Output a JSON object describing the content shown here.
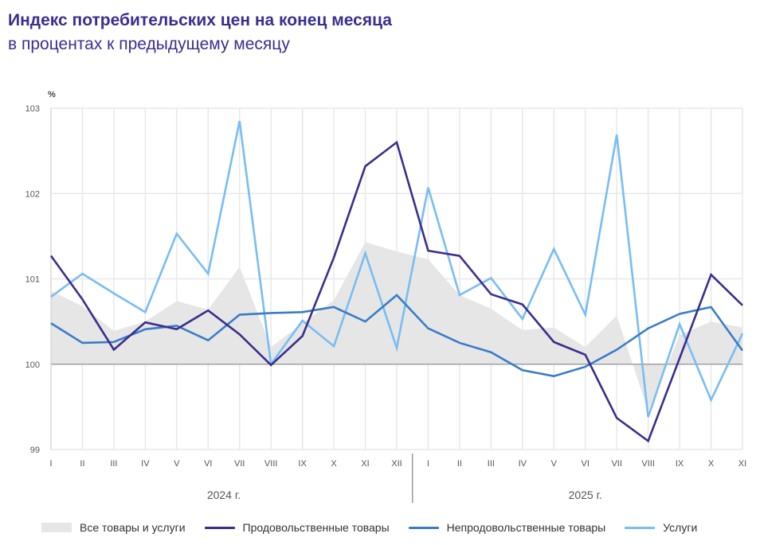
{
  "header": {
    "title": "Индекс потребительских цен на конец месяца",
    "subtitle": "в процентах к предыдущему месяцу"
  },
  "chart_data": {
    "type": "line",
    "title": "Индекс потребительских цен на конец месяца",
    "subtitle": "в процентах к предыдущему месяцу",
    "ylabel": "%",
    "ylim": [
      99,
      103
    ],
    "yticks": [
      "99",
      "100",
      "101",
      "102",
      "103"
    ],
    "grid": true,
    "categories": [
      "I",
      "II",
      "III",
      "IV",
      "V",
      "VI",
      "VII",
      "VIII",
      "IX",
      "X",
      "XI",
      "XII",
      "I",
      "II",
      "III",
      "IV",
      "V",
      "VI",
      "VII",
      "VIII",
      "IX",
      "X",
      "XI"
    ],
    "year_groups": [
      {
        "label": "2024 г.",
        "start": 0,
        "end": 11
      },
      {
        "label": "2025 г.",
        "start": 12,
        "end": 22
      }
    ],
    "series": [
      {
        "name": "Все товары и услуги",
        "kind": "area",
        "color": "#e6e6e6",
        "values": [
          100.86,
          100.68,
          100.39,
          100.5,
          100.74,
          100.64,
          101.14,
          100.2,
          100.48,
          100.75,
          101.43,
          101.32,
          101.23,
          100.81,
          100.65,
          100.4,
          100.43,
          100.2,
          100.57,
          99.45,
          100.34,
          100.5,
          100.43
        ]
      },
      {
        "name": "Продовольственные товары",
        "kind": "line",
        "color": "#3c2e8c",
        "values": [
          101.27,
          100.76,
          100.17,
          100.49,
          100.41,
          100.63,
          100.35,
          99.99,
          100.33,
          101.25,
          102.32,
          102.6,
          101.33,
          101.27,
          100.82,
          100.7,
          100.26,
          100.11,
          99.37,
          99.1,
          100.07,
          101.05,
          100.69
        ]
      },
      {
        "name": "Непродовольственные товары",
        "kind": "line",
        "color": "#3a7cc8",
        "values": [
          100.48,
          100.25,
          100.26,
          100.41,
          100.45,
          100.28,
          100.58,
          100.6,
          100.61,
          100.67,
          100.5,
          100.81,
          100.42,
          100.25,
          100.14,
          99.93,
          99.86,
          99.97,
          100.17,
          100.42,
          100.59,
          100.67,
          100.16
        ]
      },
      {
        "name": "Услуги",
        "kind": "line",
        "color": "#78bdf5",
        "values": [
          100.79,
          101.06,
          100.83,
          100.61,
          101.53,
          101.06,
          102.85,
          100.0,
          100.51,
          100.21,
          101.3,
          100.19,
          102.07,
          100.81,
          101.01,
          100.53,
          101.35,
          100.58,
          102.69,
          99.38,
          100.47,
          99.58,
          100.36
        ]
      }
    ]
  }
}
